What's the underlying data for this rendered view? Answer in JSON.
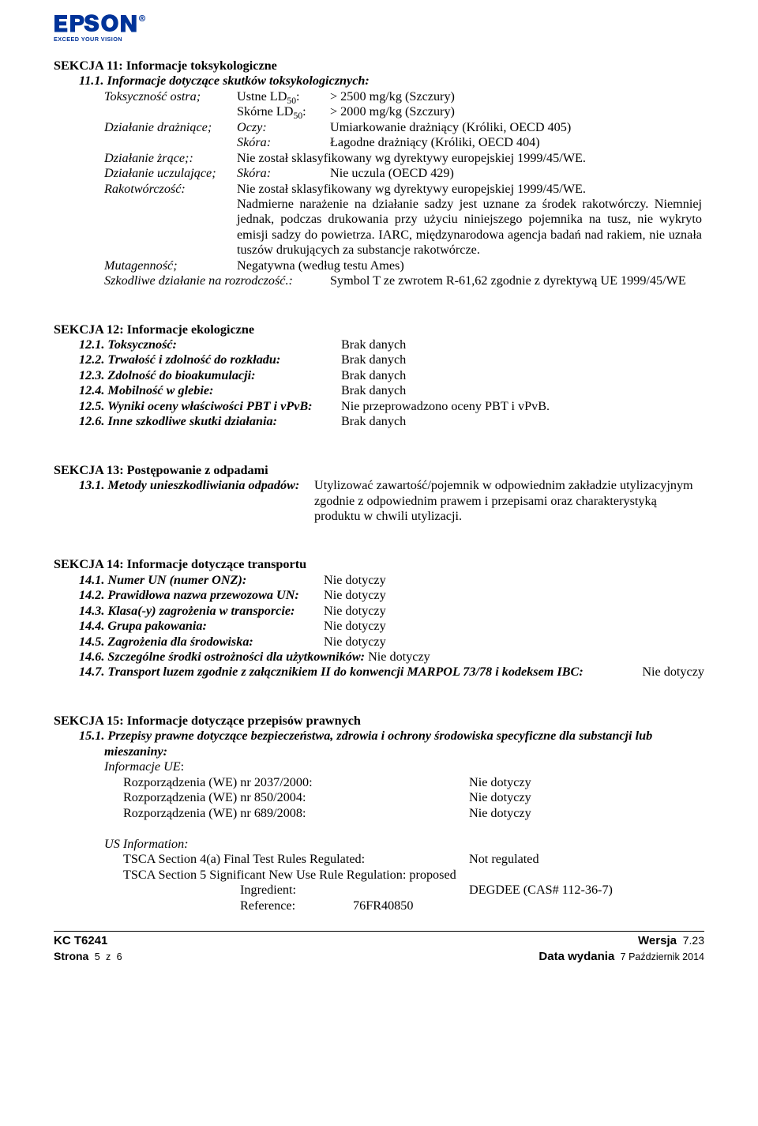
{
  "brand": {
    "name": "EPSON",
    "primary_color": "#003399",
    "tagline": "EXCEED YOUR VISION"
  },
  "section11": {
    "title": "SEKCJA 11: Informacje toksykologiczne",
    "sub1": {
      "heading": "11.1. Informacje dotyczące skutków toksykologicznych:",
      "tox_label": "Toksyczność ostra;",
      "ustne_label": "Ustne LD",
      "ustne_sub": "50",
      "ustne_colon": ":",
      "skorn_label": "Skórne LD",
      "skorn_sub": "50",
      "skorn_colon": ":",
      "ustne_val": "> 2500 mg/kg (Szczury)",
      "skorn_val": "> 2000 mg/kg (Szczury)",
      "drazn_label": "Działanie drażniące;",
      "oczy_label": "Oczy:",
      "oczy_val": "Umiarkowanie drażniący (Króliki, OECD 405)",
      "skora_label": "Skóra:",
      "skora_val": "Łagodne drażniący (Króliki, OECD 404)",
      "zrace_label": "Działanie żrące;:",
      "zrace_val": "Nie został sklasyfikowany wg dyrektywy europejskiej 1999/45/WE.",
      "uczul_label": "Działanie uczulające;",
      "uczul_skora_label": "Skóra:",
      "uczul_val": "Nie uczula (OECD 429)",
      "rako_label": "Rakotwórczość:",
      "rako_line1": "Nie został sklasyfikowany wg dyrektywy europejskiej 1999/45/WE.",
      "rako_block": "Nadmierne narażenie na działanie sadzy jest uznane za środek rakotwórczy.   Niemniej jednak, podczas drukowania przy użyciu niniejszego pojemnika na tusz, nie wykryto emisji sadzy do powietrza.   IARC, międzynarodowa agencja badań nad rakiem, nie uznała tuszów drukujących za substancje rakotwórcze.",
      "muta_label": "Mutagenność;",
      "muta_val": "Negatywna (według testu Ames)",
      "szkod_label": "Szkodliwe działanie na rozrodczość.:",
      "szkod_val": "Symbol T ze zwrotem R-61,62 zgodnie z dyrektywą UE 1999/45/WE"
    }
  },
  "section12": {
    "title": "SEKCJA 12: Informacje ekologiczne",
    "rows": [
      {
        "label": "12.1. Toksyczność:",
        "value": "Brak danych"
      },
      {
        "label": "12.2. Trwałość i zdolność do rozkładu:",
        "value": "Brak danych"
      },
      {
        "label": "12.3. Zdolność do bioakumulacji:",
        "value": "Brak danych"
      },
      {
        "label": "12.4. Mobilność w glebie:",
        "value": "Brak danych"
      },
      {
        "label": "12.5. Wyniki oceny właściwości PBT i vPvB:",
        "value": "Nie przeprowadzono oceny PBT i vPvB."
      },
      {
        "label": "12.6. Inne szkodliwe skutki działania:",
        "value": "Brak danych"
      }
    ]
  },
  "section13": {
    "title": "SEKCJA 13: Postępowanie z odpadami",
    "row_label": "13.1. Metody unieszkodliwiania odpadów:",
    "row_value": "Utylizować zawartość/pojemnik w odpowiednim zakładzie utylizacyjnym zgodnie z odpowiednim prawem i przepisami oraz charakterystyką produktu w chwili utylizacji."
  },
  "section14": {
    "title": "SEKCJA 14: Informacje dotyczące transportu",
    "rows": [
      {
        "label": "14.1. Numer UN (numer ONZ):",
        "value": "Nie dotyczy"
      },
      {
        "label": "14.2. Prawidłowa nazwa przewozowa UN:",
        "value": "Nie dotyczy"
      },
      {
        "label": "14.3. Klasa(-y) zagrożenia w transporcie:",
        "value": "Nie dotyczy"
      },
      {
        "label": "14.4. Grupa pakowania:",
        "value": "Nie dotyczy"
      },
      {
        "label": "14.5. Zagrożenia dla środowiska:",
        "value": "Nie dotyczy"
      }
    ],
    "row6_label": "14.6. Szczególne środki ostrożności dla użytkowników:",
    "row6_value": "Nie dotyczy",
    "row7_label": "14.7. Transport luzem zgodnie z załącznikiem II do konwencji MARPOL 73/78 i kodeksem IBC:",
    "row7_value": "Nie dotyczy"
  },
  "section15": {
    "title": "SEKCJA 15: Informacje dotyczące przepisów prawnych",
    "sub1_line1": "15.1. Przepisy prawne dotyczące bezpieczeństwa, zdrowia i ochrony środowiska specyficzne dla substancji lub",
    "sub1_line2": "mieszaniny:",
    "ue_label": "Informacje UE",
    "ue_colon": ":",
    "ue_rows": [
      {
        "label": "Rozporządzenia (WE) nr 2037/2000:",
        "value": "Nie dotyczy"
      },
      {
        "label": "Rozporządzenia (WE) nr 850/2004:",
        "value": "Nie dotyczy"
      },
      {
        "label": "Rozporządzenia (WE) nr 689/2008:",
        "value": "Nie dotyczy"
      }
    ],
    "us_label": "US Information:",
    "tsca4_label": "TSCA Section 4(a) Final Test Rules Regulated:",
    "tsca4_value": "Not regulated",
    "tsca5_label": "TSCA Section 5 Significant New Use Rule Regulation: proposed",
    "ingredient_label": "Ingredient:",
    "ingredient_value": "DEGDEE (CAS# 112-36-7)",
    "reference_label": "Reference:",
    "reference_value": "76FR40850"
  },
  "footer": {
    "product_code": "KC T6241",
    "page_label": "Strona",
    "page_current": "5",
    "page_sep": "z",
    "page_total": "6",
    "version_label": "Wersja",
    "version_value": "7.23",
    "date_label": "Data wydania",
    "date_value": "7 Październik 2014"
  }
}
